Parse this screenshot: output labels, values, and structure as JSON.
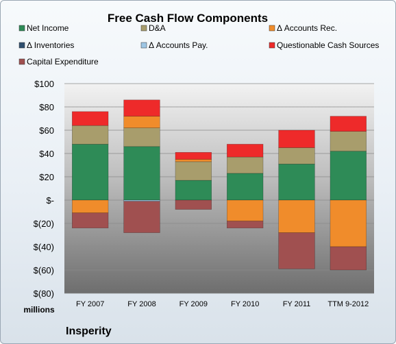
{
  "chart_data": {
    "type": "bar",
    "stacked": true,
    "title": "Free Cash Flow Components",
    "ylabel": "millions",
    "company": "Insperity",
    "categories": [
      "FY 2007",
      "FY 2008",
      "FY 2009",
      "FY 2010",
      "FY 2011",
      "TTM 9-2012"
    ],
    "ylim": [
      -80,
      100
    ],
    "yticks": [
      100,
      80,
      60,
      40,
      20,
      0,
      -20,
      -40,
      -60,
      -80
    ],
    "ytick_labels": [
      "$100",
      "$80",
      "$60",
      "$40",
      "$20",
      "$-",
      "$(20)",
      "$(40)",
      "$(60)",
      "$(80)"
    ],
    "legend_position": "top",
    "series": [
      {
        "name": "Net Income",
        "color": "#2e8b57",
        "values": [
          48,
          46,
          17,
          23,
          31,
          42
        ]
      },
      {
        "name": "D&A",
        "color": "#a89d6c",
        "values": [
          16,
          16,
          16,
          14,
          14,
          17
        ]
      },
      {
        "name": "Δ Accounts Rec.",
        "color": "#f08c2b",
        "values": [
          -11,
          10,
          2,
          -18,
          -28,
          -40
        ]
      },
      {
        "name": "Δ Inventories",
        "color": "#2f4f6f",
        "values": [
          0,
          0,
          0,
          0,
          0,
          0
        ]
      },
      {
        "name": "Δ Accounts Pay.",
        "color": "#9ec6e4",
        "values": [
          0,
          -1,
          0,
          0,
          0,
          0
        ]
      },
      {
        "name": "Questionable Cash Sources",
        "color": "#ee2a2a",
        "values": [
          12,
          14,
          6,
          11,
          15,
          13
        ]
      },
      {
        "name": "Capital Expenditure",
        "color": "#a05050",
        "values": [
          -13,
          -27,
          -8,
          -6,
          -31,
          -20
        ]
      }
    ]
  },
  "colors": {
    "plot_top": "#f2f2f2",
    "plot_bottom": "#6e6e6e",
    "frame_border": "#9aa7b4"
  }
}
